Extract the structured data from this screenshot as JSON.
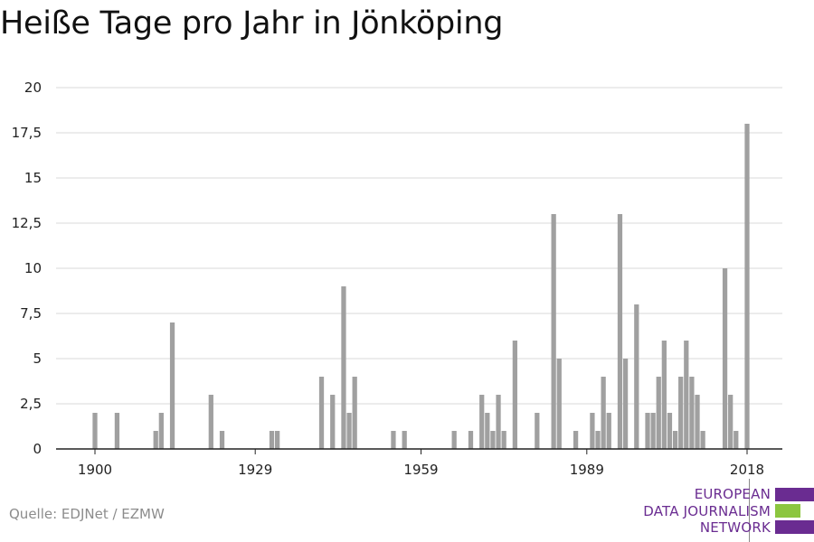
{
  "title": "Heiße Tage pro Jahr in Jönköping",
  "source": "Quelle: EDJNet / EZMW",
  "logo": {
    "lines": [
      "EUROPEAN",
      "DATA JOURNALISM",
      "NETWORK"
    ],
    "colors": {
      "text": "#6a2c91",
      "bar_purple": "#6a2c91",
      "bar_green": "#8cc63f"
    }
  },
  "colors": {
    "bar": "#a0a0a0",
    "grid": "#d9d9d9",
    "axis": "#222222",
    "tick_label": "#222222"
  },
  "chart_data": {
    "type": "bar",
    "title": "Heiße Tage pro Jahr in Jönköping",
    "xlabel": "",
    "ylabel": "",
    "xlim": [
      1900,
      2018
    ],
    "ylim": [
      0,
      20
    ],
    "grid": true,
    "x_ticks": [
      1900,
      1929,
      1959,
      1989,
      2018
    ],
    "x_tick_labels": [
      "1900",
      "1929",
      "1959",
      "1989",
      "2018"
    ],
    "y_ticks": [
      0,
      2.5,
      5,
      7.5,
      10,
      12.5,
      15,
      17.5,
      20
    ],
    "y_tick_labels": [
      "0",
      "2,5",
      "5",
      "7,5",
      "10",
      "12,5",
      "15",
      "17,5",
      "20"
    ],
    "x": [
      1900,
      1904,
      1911,
      1912,
      1914,
      1921,
      1923,
      1932,
      1933,
      1941,
      1943,
      1945,
      1946,
      1947,
      1954,
      1956,
      1965,
      1968,
      1970,
      1971,
      1972,
      1973,
      1974,
      1976,
      1980,
      1983,
      1984,
      1987,
      1990,
      1991,
      1992,
      1993,
      1995,
      1996,
      1998,
      2000,
      2001,
      2002,
      2003,
      2004,
      2005,
      2006,
      2007,
      2008,
      2009,
      2010,
      2014,
      2015,
      2016,
      2018
    ],
    "values": [
      2,
      2,
      1,
      2,
      7,
      3,
      1,
      1,
      1,
      4,
      3,
      9,
      2,
      4,
      1,
      1,
      1,
      1,
      3,
      2,
      1,
      3,
      1,
      6,
      2,
      13,
      5,
      1,
      2,
      1,
      4,
      2,
      13,
      5,
      8,
      2,
      2,
      4,
      6,
      2,
      1,
      4,
      6,
      4,
      3,
      1,
      10,
      3,
      1,
      18
    ]
  }
}
